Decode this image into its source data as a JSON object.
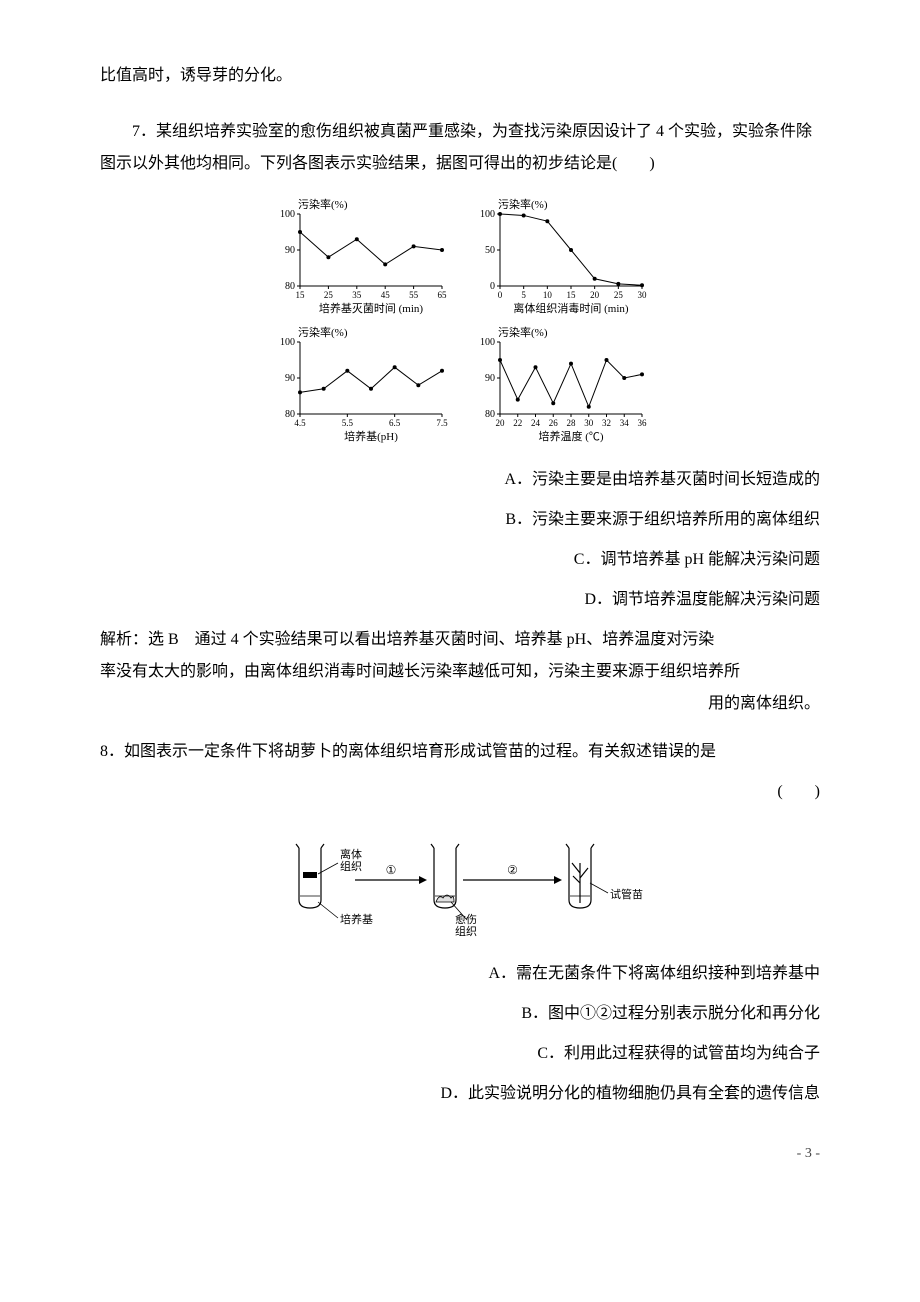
{
  "continuation_text": "比值高时，诱导芽的分化。",
  "q7": {
    "intro": "7．某组织培养实验室的愈伤组织被真菌严重感染，为查找污染原因设计了 4 个实验，实验条件除图示以外其他均相同。下列各图表示实验结果，据图可得出的初步结论是(　　)",
    "options": [
      "A．污染主要是由培养基灭菌时间长短造成的",
      "B．污染主要来源于组织培养所用的离体组织",
      "C．调节培养基 pH 能解决污染问题",
      "D．调节培养温度能解决污染问题"
    ],
    "explain_line1": "解析：选 B　通过 4 个实验结果可以看出培养基灭菌时间、培养基 pH、培养温度对污染",
    "explain_line2": "率没有太大的影响，由离体组织消毒时间越长污染率越低可知，污染主要来源于组织培养所",
    "explain_line3": "用的离体组织。",
    "charts": {
      "colors": {
        "fg": "#000000",
        "bg": "#ffffff"
      },
      "line_width": 1,
      "marker_size": 2,
      "font_axis": 11,
      "font_tick": 10,
      "chart1": {
        "ylabel": "污染率(%)",
        "xlabel": "培养基灭菌时间 (min)",
        "xticks": [
          15,
          25,
          35,
          45,
          55,
          65
        ],
        "yticks": [
          80,
          90,
          100
        ],
        "ylim": [
          80,
          100
        ],
        "xlim": [
          15,
          65
        ],
        "points": [
          [
            15,
            95
          ],
          [
            25,
            88
          ],
          [
            35,
            93
          ],
          [
            45,
            86
          ],
          [
            55,
            91
          ],
          [
            65,
            90
          ]
        ]
      },
      "chart2": {
        "ylabel": "污染率(%)",
        "xlabel": "离体组织消毒时间 (min)",
        "xticks": [
          0,
          5,
          10,
          15,
          20,
          25,
          30
        ],
        "yticks": [
          0,
          50,
          100
        ],
        "ylim": [
          0,
          100
        ],
        "xlim": [
          0,
          30
        ],
        "points": [
          [
            0,
            100
          ],
          [
            5,
            98
          ],
          [
            10,
            90
          ],
          [
            15,
            50
          ],
          [
            20,
            10
          ],
          [
            25,
            3
          ],
          [
            30,
            1
          ]
        ]
      },
      "chart3": {
        "ylabel": "污染率(%)",
        "xlabel": "培养基(pH)",
        "xticks": [
          4.5,
          5.5,
          6.5,
          7.5
        ],
        "yticks": [
          80,
          90,
          100
        ],
        "ylim": [
          80,
          100
        ],
        "xlim": [
          4.5,
          7.5
        ],
        "points": [
          [
            4.5,
            86
          ],
          [
            5.0,
            87
          ],
          [
            5.5,
            92
          ],
          [
            6.0,
            87
          ],
          [
            6.5,
            93
          ],
          [
            7.0,
            88
          ],
          [
            7.5,
            92
          ]
        ]
      },
      "chart4": {
        "ylabel": "污染率(%)",
        "xlabel": "培养温度 (℃)",
        "xticks": [
          20,
          22,
          24,
          26,
          28,
          30,
          32,
          34,
          36
        ],
        "yticks": [
          80,
          90,
          100
        ],
        "ylim": [
          80,
          100
        ],
        "xlim": [
          20,
          36
        ],
        "points": [
          [
            20,
            95
          ],
          [
            22,
            84
          ],
          [
            24,
            93
          ],
          [
            26,
            83
          ],
          [
            28,
            94
          ],
          [
            30,
            82
          ],
          [
            32,
            95
          ],
          [
            34,
            90
          ],
          [
            36,
            91
          ]
        ]
      }
    }
  },
  "q8": {
    "intro": "8．如图表示一定条件下将胡萝卜的离体组织培育形成试管苗的过程。有关叙述错误的是",
    "paren": "(　　)",
    "options": [
      "A．需在无菌条件下将离体组织接种到培养基中",
      "B．图中①②过程分别表示脱分化和再分化",
      "C．利用此过程获得的试管苗均为纯合子",
      "D．此实验说明分化的植物细胞仍具有全套的遗传信息"
    ],
    "diagram": {
      "tubes": [
        {
          "label_top": "离体\n组织",
          "label_bottom": "培养基"
        },
        {
          "label_bottom": "愈伤\n组织"
        },
        {
          "label_right": "试管苗"
        }
      ],
      "arrows": [
        {
          "label": "①"
        },
        {
          "label": "②"
        }
      ],
      "colors": {
        "outline": "#000000",
        "fill_tissue": "#000000",
        "fill_callus": "#e0e0e0",
        "bg": "#ffffff"
      },
      "line_width": 1.2
    }
  },
  "page_number": "- 3 -"
}
